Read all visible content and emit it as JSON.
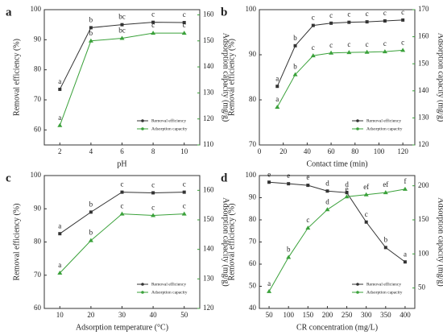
{
  "chart_data": [
    {
      "type": "line",
      "panel": "a",
      "x_label": "pH",
      "y_label": "Removal efficiency (%)",
      "y2_label": "Adsorption capacity (mg/g)",
      "x": [
        2,
        4,
        6,
        8,
        10
      ],
      "xlim": [
        1,
        11
      ],
      "xticks": [
        2,
        4,
        6,
        8,
        10
      ],
      "ylim": [
        55,
        100
      ],
      "yticks": [
        60,
        70,
        80,
        90,
        100
      ],
      "y2lim": [
        110,
        162
      ],
      "y2ticks": [
        110,
        120,
        130,
        140,
        150,
        160
      ],
      "legend": "lower right",
      "series": [
        {
          "name": "Removal efficiency",
          "color": "#333333",
          "values": [
            73.5,
            94,
            95,
            95.8,
            95.7
          ],
          "annotations": [
            "a",
            "b",
            "bc",
            "c",
            "c"
          ]
        },
        {
          "name": "Adsorption capacity",
          "color": "#3aa13a",
          "axis": "y2",
          "values": [
            117.5,
            150,
            151,
            153,
            153
          ],
          "annotations": [
            "a",
            "b",
            "bc",
            "c",
            "c"
          ]
        }
      ]
    },
    {
      "type": "line",
      "panel": "b",
      "x_label": "Contact time (min)",
      "y_label": "Removal efficiency (%)",
      "y2_label": "Adsorption capacity (mg/g)",
      "x": [
        15,
        30,
        45,
        60,
        75,
        90,
        105,
        120
      ],
      "xlim": [
        0,
        130
      ],
      "xticks": [
        0,
        20,
        40,
        60,
        80,
        100,
        120
      ],
      "ylim": [
        70,
        100
      ],
      "yticks": [
        70,
        80,
        90,
        100
      ],
      "y2lim": [
        120,
        170
      ],
      "y2ticks": [
        120,
        130,
        140,
        150,
        160,
        170
      ],
      "legend": "lower right",
      "series": [
        {
          "name": "Removal efficiency",
          "color": "#333333",
          "values": [
            83,
            92,
            96.5,
            97,
            97.2,
            97.3,
            97.5,
            97.7
          ],
          "annotations": [
            "a",
            "b",
            "c",
            "c",
            "c",
            "c",
            "c",
            "c"
          ]
        },
        {
          "name": "Adsorption capacity",
          "color": "#3aa13a",
          "axis": "y2",
          "values": [
            134,
            146,
            153,
            154,
            154.2,
            154.3,
            154.5,
            155
          ],
          "annotations": [
            "a",
            "b",
            "c",
            "c",
            "c",
            "c",
            "c",
            "c"
          ]
        }
      ]
    },
    {
      "type": "line",
      "panel": "c",
      "x_label": "Adsorption temperature (°C)",
      "y_label": "Removal efficiency (%)",
      "y2_label": "Adsorption capacity (mg/g)",
      "x": [
        10,
        20,
        30,
        40,
        50
      ],
      "xlim": [
        5,
        55
      ],
      "xticks": [
        10,
        20,
        30,
        40,
        50
      ],
      "ylim": [
        60,
        100
      ],
      "yticks": [
        60,
        70,
        80,
        90,
        100
      ],
      "y2lim": [
        120,
        165
      ],
      "y2ticks": [
        120,
        130,
        140,
        150,
        160
      ],
      "legend": "lower right",
      "series": [
        {
          "name": "Removal efficiency",
          "color": "#333333",
          "values": [
            82.5,
            89,
            95,
            94.8,
            95
          ],
          "annotations": [
            "a",
            "b",
            "c",
            "c",
            "c"
          ]
        },
        {
          "name": "Adsorption capacity",
          "color": "#3aa13a",
          "axis": "y2",
          "values": [
            132,
            143,
            152,
            151.5,
            152
          ],
          "annotations": [
            "a",
            "b",
            "c",
            "c",
            "c"
          ]
        }
      ]
    },
    {
      "type": "line",
      "panel": "d",
      "x_label": "CR concentration (mg/L)",
      "y_label": "Removal efficiency (%)",
      "y2_label": "Adsorption capacity (mg/g)",
      "x": [
        50,
        100,
        150,
        200,
        250,
        300,
        350,
        400
      ],
      "xlim": [
        25,
        425
      ],
      "xticks": [
        50,
        100,
        150,
        200,
        250,
        300,
        350,
        400
      ],
      "ylim": [
        40,
        100
      ],
      "yticks": [
        40,
        50,
        60,
        70,
        80,
        90,
        100
      ],
      "y2lim": [
        20,
        215
      ],
      "y2ticks": [
        50,
        100,
        150,
        200
      ],
      "legend": "lower right",
      "series": [
        {
          "name": "Removal efficiency",
          "color": "#333333",
          "values": [
            97,
            96.3,
            95.6,
            93,
            92.3,
            79,
            67.5,
            61
          ],
          "annotations": [
            "e",
            "e",
            "e",
            "d",
            "d",
            "c",
            "b",
            "a"
          ]
        },
        {
          "name": "Adsorption capacity",
          "color": "#3aa13a",
          "axis": "y2",
          "values": [
            45,
            95,
            138,
            165,
            184,
            187,
            190,
            195
          ],
          "annotations": [
            "a",
            "b",
            "c",
            "d",
            "e",
            "ef",
            "ef",
            "f"
          ]
        }
      ]
    }
  ]
}
